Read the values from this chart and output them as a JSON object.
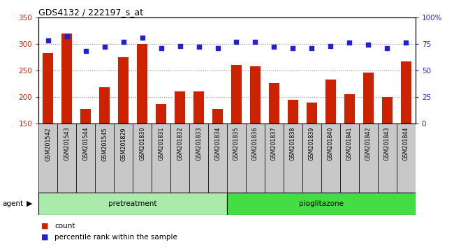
{
  "title": "GDS4132 / 222197_s_at",
  "categories": [
    "GSM201542",
    "GSM201543",
    "GSM201544",
    "GSM201545",
    "GSM201829",
    "GSM201830",
    "GSM201831",
    "GSM201832",
    "GSM201833",
    "GSM201834",
    "GSM201835",
    "GSM201836",
    "GSM201837",
    "GSM201838",
    "GSM201839",
    "GSM201840",
    "GSM201841",
    "GSM201842",
    "GSM201843",
    "GSM201844"
  ],
  "bar_values": [
    283,
    320,
    178,
    218,
    275,
    300,
    187,
    211,
    210,
    178,
    260,
    258,
    226,
    195,
    190,
    233,
    205,
    246,
    200,
    267
  ],
  "dot_values": [
    78,
    82,
    68,
    72,
    77,
    81,
    71,
    73,
    72,
    71,
    77,
    77,
    72,
    71,
    71,
    73,
    76,
    74,
    71,
    76
  ],
  "pretreatment_count": 10,
  "pioglitazone_count": 10,
  "ylim_left": [
    150,
    350
  ],
  "ylim_right": [
    0,
    100
  ],
  "yticks_left": [
    150,
    200,
    250,
    300,
    350
  ],
  "yticks_right": [
    0,
    25,
    50,
    75,
    100
  ],
  "ytick_labels_right": [
    "0",
    "25",
    "50",
    "75",
    "100%"
  ],
  "bar_color": "#cc2200",
  "dot_color": "#2222cc",
  "grid_color": "#888888",
  "bg_color": "#c8c8c8",
  "pretreatment_color": "#aaeaaa",
  "pioglitazone_color": "#44dd44",
  "legend_count": "count",
  "legend_pct": "percentile rank within the sample"
}
